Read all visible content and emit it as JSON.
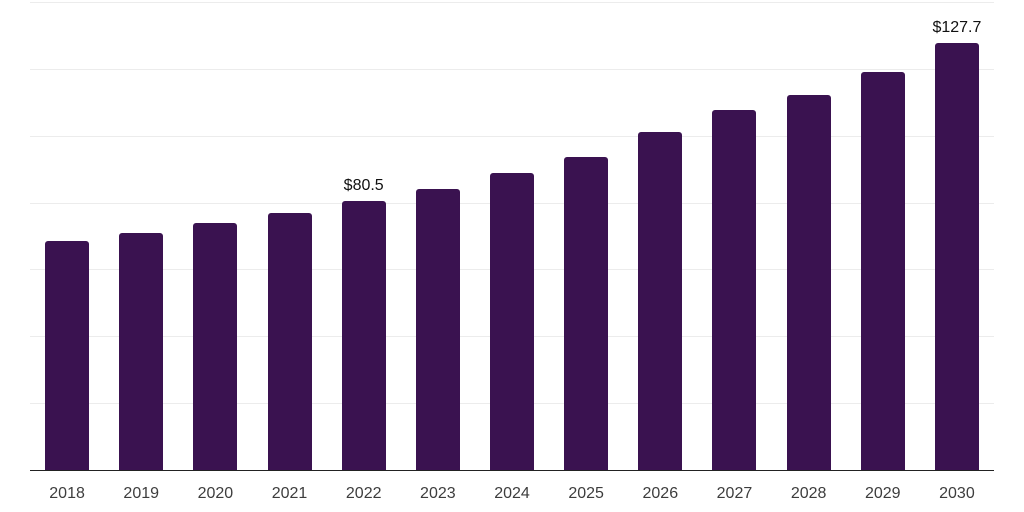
{
  "chart_data": {
    "type": "bar",
    "title": "",
    "xlabel": "",
    "ylabel": "",
    "categories": [
      "2018",
      "2019",
      "2020",
      "2021",
      "2022",
      "2023",
      "2024",
      "2025",
      "2026",
      "2027",
      "2028",
      "2029",
      "2030"
    ],
    "values": [
      68.5,
      71.0,
      74.0,
      76.9,
      80.5,
      84.2,
      88.8,
      93.5,
      101.0,
      107.7,
      112.3,
      119.2,
      127.7
    ],
    "data_labels": {
      "2022": "$80.5",
      "2030": "$127.7"
    },
    "ylim": [
      0,
      140
    ],
    "grid_step": 20,
    "grid": "horizontal-only",
    "legend": "none",
    "y_tick_labels": "none",
    "colors": {
      "bar": "#3a1250",
      "gridline": "#ececec",
      "axis": "#222222",
      "tick_label": "#3d3d3d",
      "data_label": "#111111"
    }
  }
}
